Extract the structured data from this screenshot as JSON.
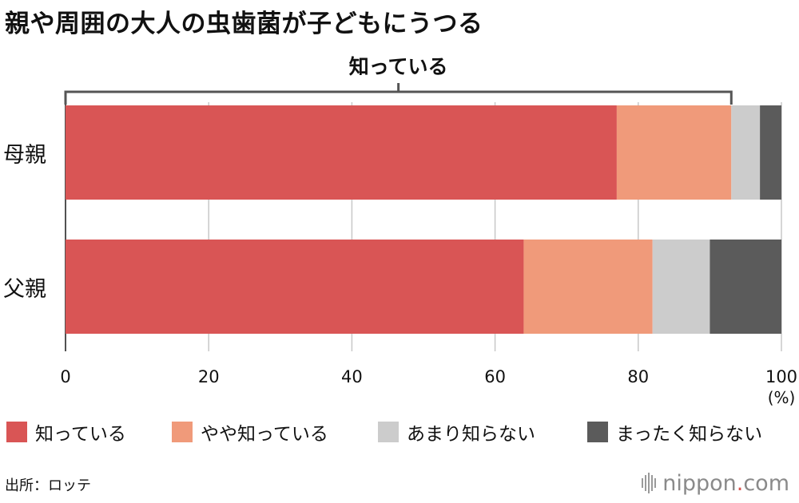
{
  "title": "親や周囲の大人の虫歯菌が子どもにうつる",
  "chart_data": {
    "type": "bar",
    "orientation": "horizontal",
    "stacked": true,
    "categories": [
      "母親",
      "父親"
    ],
    "series": [
      {
        "name": "知っている",
        "values": [
          77,
          64
        ],
        "color": "#d95555"
      },
      {
        "name": "やや知っている",
        "values": [
          16,
          18
        ],
        "color": "#f09a7a"
      },
      {
        "name": "あまり知らない",
        "values": [
          4,
          8
        ],
        "color": "#cccccc"
      },
      {
        "name": "まったく知らない",
        "values": [
          3,
          10
        ],
        "color": "#5b5b5b"
      }
    ],
    "xlim": [
      0,
      100
    ],
    "xticks": [
      "0",
      "20",
      "40",
      "60",
      "80",
      "100"
    ],
    "xunit": "(%)",
    "bracket_label": "知っている",
    "grid": true,
    "legend_position": "bottom"
  },
  "source": "出所：ロッテ",
  "brand": {
    "main": "nippon",
    "dot": ".",
    "tld": "com"
  }
}
